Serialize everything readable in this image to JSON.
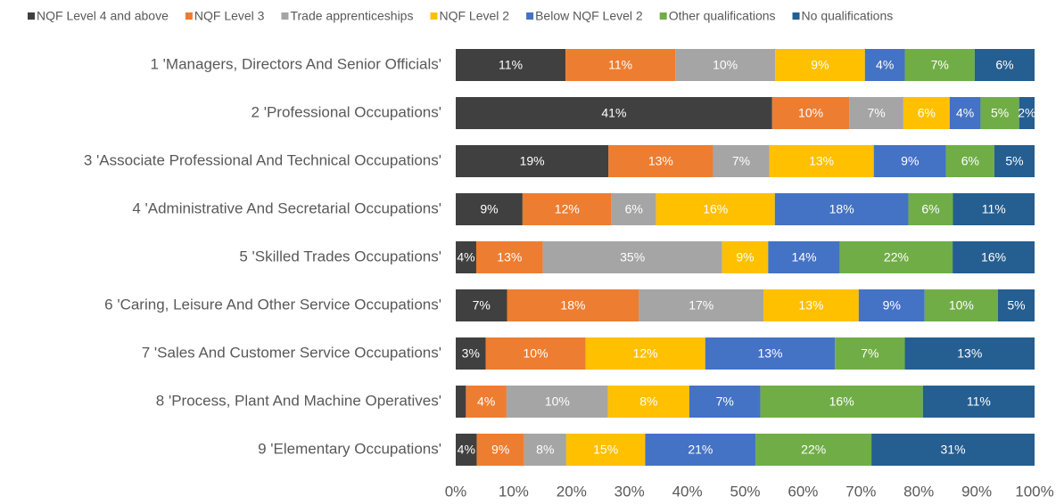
{
  "chart_data": {
    "type": "bar",
    "orientation": "horizontal",
    "stacking": "percent",
    "categories": [
      "1  'Managers, Directors And Senior Officials'",
      "2  'Professional Occupations'",
      "3  'Associate Professional And Technical Occupations'",
      "4  'Administrative And Secretarial Occupations'",
      "5  'Skilled Trades Occupations'",
      "6  'Caring, Leisure And Other Service Occupations'",
      "7  'Sales And Customer Service Occupations'",
      "8  'Process, Plant And Machine Operatives'",
      "9  'Elementary Occupations'"
    ],
    "series": [
      {
        "name": "NQF Level 4 and above",
        "color": "#404040",
        "values": [
          11,
          41,
          19,
          9,
          4,
          7,
          3,
          1,
          4
        ],
        "value_labels": [
          "11%",
          "41%",
          "19%",
          "9%",
          "4%",
          "7%",
          "3%",
          null,
          "4%"
        ]
      },
      {
        "name": "NQF Level 3",
        "color": "#ed7d31",
        "values": [
          11,
          10,
          13,
          12,
          13,
          18,
          10,
          4,
          9
        ],
        "value_labels": [
          "11%",
          "10%",
          "13%",
          "12%",
          "13%",
          "18%",
          "10%",
          "4%",
          "9%"
        ]
      },
      {
        "name": "Trade apprenticeships",
        "color": "#a5a5a5",
        "values": [
          10,
          7,
          7,
          6,
          35,
          17,
          0,
          10,
          8
        ],
        "value_labels": [
          "10%",
          "7%",
          "7%",
          "6%",
          "35%",
          "17%",
          null,
          "10%",
          "8%"
        ]
      },
      {
        "name": "NQF Level 2",
        "color": "#ffc000",
        "values": [
          9,
          6,
          13,
          16,
          9,
          13,
          12,
          8,
          15
        ],
        "value_labels": [
          "9%",
          "6%",
          "13%",
          "16%",
          "9%",
          "13%",
          "12%",
          "8%",
          "15%"
        ]
      },
      {
        "name": "Below NQF Level 2",
        "color": "#4472c4",
        "values": [
          4,
          4,
          9,
          18,
          14,
          9,
          13,
          7,
          21
        ],
        "value_labels": [
          "4%",
          "4%",
          "9%",
          "18%",
          "14%",
          "9%",
          "13%",
          "7%",
          "21%"
        ]
      },
      {
        "name": "Other qualifications",
        "color": "#70ad47",
        "values": [
          7,
          5,
          6,
          6,
          22,
          10,
          7,
          16,
          22
        ],
        "value_labels": [
          "7%",
          "5%",
          "6%",
          "6%",
          "22%",
          "10%",
          "7%",
          "16%",
          "22%"
        ]
      },
      {
        "name": "No qualifications",
        "color": "#255e91",
        "values": [
          6,
          2,
          5,
          11,
          16,
          5,
          13,
          11,
          31
        ],
        "value_labels": [
          "6%",
          "2%",
          "5%",
          "11%",
          "16%",
          "5%",
          "13%",
          "11%",
          "31%"
        ]
      }
    ],
    "xlim": [
      0,
      100
    ],
    "xticks": [
      {
        "value": 0,
        "label": "0%"
      },
      {
        "value": 10,
        "label": "10%"
      },
      {
        "value": 20,
        "label": "20%"
      },
      {
        "value": 30,
        "label": "30%"
      },
      {
        "value": 40,
        "label": "40%"
      },
      {
        "value": 50,
        "label": "50%"
      },
      {
        "value": 60,
        "label": "60%"
      },
      {
        "value": 70,
        "label": "70%"
      },
      {
        "value": 80,
        "label": "80%"
      },
      {
        "value": 90,
        "label": "90%"
      },
      {
        "value": 100,
        "label": "100%"
      }
    ],
    "legend": "top"
  }
}
